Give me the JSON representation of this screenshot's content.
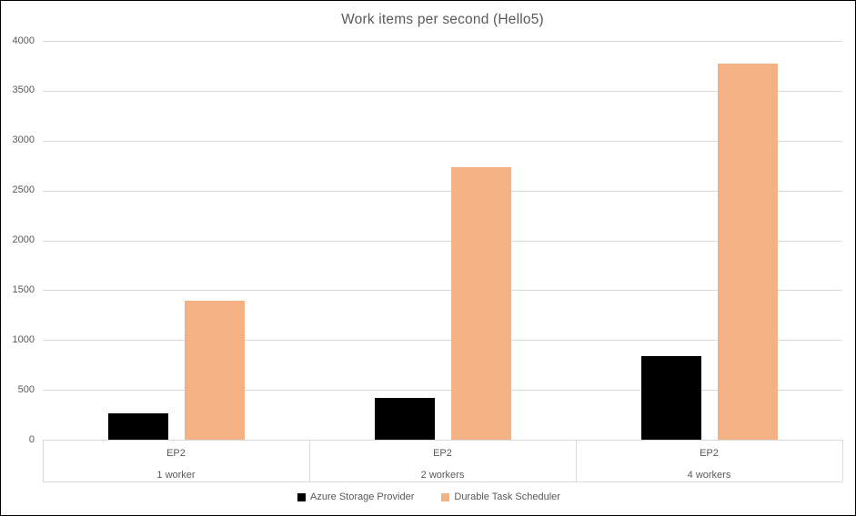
{
  "chart_data": {
    "type": "bar",
    "title": "Work items per second (Hello5)",
    "categories": [
      {
        "line1": "EP2",
        "line2": "1 worker"
      },
      {
        "line1": "EP2",
        "line2": "2 workers"
      },
      {
        "line1": "EP2",
        "line2": "4 workers"
      }
    ],
    "series": [
      {
        "name": "Azure Storage Provider",
        "color": "#000000",
        "values": [
          260,
          420,
          840
        ]
      },
      {
        "name": "Durable Task Scheduler",
        "color": "#F4B183",
        "values": [
          1390,
          2730,
          3770
        ]
      }
    ],
    "xlabel": "",
    "ylabel": "",
    "ylim": [
      0,
      4000
    ],
    "yticks": [
      0,
      500,
      1000,
      1500,
      2000,
      2500,
      3000,
      3500,
      4000
    ],
    "grid": true,
    "legend_position": "bottom"
  },
  "colors": {
    "gridline": "#d9d9d9",
    "axis_text": "#595959",
    "frame_border": "#000000",
    "background": "#ffffff"
  }
}
